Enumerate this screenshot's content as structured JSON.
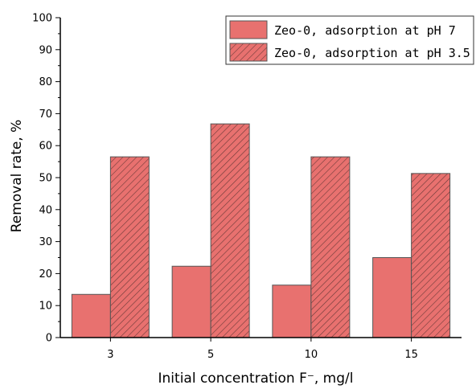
{
  "chart_data": {
    "type": "bar",
    "categories": [
      "3",
      "5",
      "10",
      "15"
    ],
    "series": [
      {
        "name": "Zeo-0, adsorption at pH 7",
        "values": [
          13.5,
          22.3,
          16.4,
          25.0
        ],
        "pattern": "solid"
      },
      {
        "name": "Zeo-0, adsorption at pH 3.5",
        "values": [
          56.5,
          66.8,
          56.5,
          51.3
        ],
        "pattern": "hatched"
      }
    ],
    "xlabel": "Initial concentration F⁻, mg/l",
    "ylabel": "Removal rate, %",
    "ylim": [
      0,
      100
    ],
    "yticks": [
      "0",
      "10",
      "20",
      "30",
      "40",
      "50",
      "60",
      "70",
      "80",
      "90",
      "100"
    ],
    "grid": false,
    "legend_position": "top-right",
    "colors": {
      "bar_fill": "#e8716f",
      "bar_stroke": "#555555",
      "hatch": "#6b3a38",
      "axis": "#000000"
    }
  }
}
